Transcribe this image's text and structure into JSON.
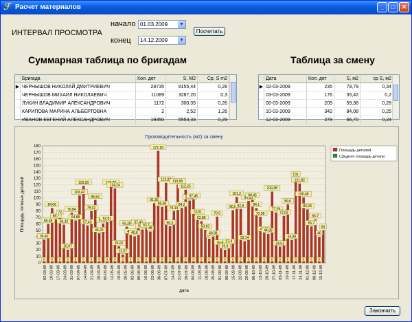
{
  "window": {
    "title": "Расчет материалов"
  },
  "filter": {
    "interval_label": "ИНТЕРВАЛ ПРОСМОТРА",
    "start_label": "начало",
    "end_label": "конец",
    "start_value": "01.03.2009",
    "end_value": "14.12.2009",
    "calc_button": "Посчитать"
  },
  "headings": {
    "summary": "Суммарная таблица по бригадам",
    "shift": "Таблица за смену"
  },
  "brigades": {
    "columns": [
      "Бригада",
      "Кол. дет",
      "S, M2",
      "Ср. S m2"
    ],
    "rows": [
      [
        "ЧЕРНЫШОВ НИКОЛАЙ ДМИТРИЕВИЧ",
        "28735",
        "8155,44",
        "0,28"
      ],
      [
        "ЧЕРНЫШОВ МИХАИЛ НИКОЛАЕВИЧ",
        "11089",
        "3287,20",
        "0,3"
      ],
      [
        "ЛУКИН ВЛАДИМИР АЛЕКСАНДРОВИЧ",
        "1172",
        "300,35",
        "0,26"
      ],
      [
        "КАРИПОВА МАРИНА АЛЬБЕРТОВНА",
        "2",
        "2,52",
        "1,26"
      ],
      [
        "ИВАНОВ ЕВГЕНИЙ АЛЕКСАНДРОВИЧ",
        "19350",
        "5553,33",
        "0,29"
      ]
    ]
  },
  "shifts": {
    "columns": [
      "Дата",
      "Кол. дет",
      "S, м2",
      "ср S, м2"
    ],
    "rows": [
      [
        "02-03-2009",
        "235",
        "79,79",
        "0,34"
      ],
      [
        "03-03-2009",
        "176",
        "35,42",
        "0,2"
      ],
      [
        "06-03-2009",
        "209",
        "59,38",
        "0,28"
      ],
      [
        "10-03-2009",
        "342",
        "84,08",
        "0,25"
      ],
      [
        "12-03-2009",
        "278",
        "66,70",
        "0,24"
      ]
    ]
  },
  "chart_data": {
    "type": "bar",
    "title": "Производительность (м2) за смену",
    "xlabel": "дата",
    "ylabel": "Площадь готовых деталей",
    "ylim": [
      0,
      180
    ],
    "yticks": [
      0,
      10,
      20,
      30,
      40,
      50,
      60,
      70,
      80,
      90,
      100,
      110,
      120,
      130,
      140,
      150,
      160,
      170,
      180
    ],
    "grid": true,
    "legend_position": "top-right",
    "series": [
      {
        "name": "Площадь деталей",
        "color": "#b5341e"
      },
      {
        "name": "Средняя площадь детали",
        "color": "#2e8b2e"
      }
    ],
    "categories": [
      "03-03-09",
      "10-03-09",
      "17-03-09",
      "24-03-09",
      "31-03-09",
      "07-04-09",
      "14-04-09",
      "21-04-09",
      "28-04-09",
      "05-05-09",
      "12-05-09",
      "19-05-09",
      "26-05-09",
      "02-06-09",
      "09-06-09",
      "16-06-09",
      "23-06-09",
      "30-06-09",
      "07-07-09",
      "14-07-09",
      "21-07-09",
      "28-07-09",
      "04-08-09",
      "11-08-09",
      "18-08-09",
      "25-08-09",
      "01-09-09",
      "08-09-09",
      "15-09-09",
      "22-09-09",
      "29-09-09",
      "06-10-09",
      "13-10-09",
      "20-10-09",
      "27-10-09",
      "03-11-09",
      "10-11-09",
      "17-11-09",
      "24-11-09",
      "01-12-09",
      "08-12-09",
      "15-12-09"
    ],
    "labeled_values": [
      35.42,
      59.38,
      84.06,
      66.7,
      72.0,
      58.32,
      20.07,
      76.84,
      64.88,
      103.42,
      118.28,
      57.43,
      79.42,
      96.52,
      45.25,
      60.28,
      62.81,
      118.28,
      114.24,
      25.02,
      12.57,
      55.28,
      42.9,
      40.6,
      57.43,
      51.14,
      52.7,
      48.0,
      91.56,
      172.18,
      85.68,
      122.82,
      56.3,
      79.14,
      119.95,
      84.2,
      112.25,
      95.52,
      97.45,
      73.01,
      63.88,
      50.63,
      37.0,
      40.38,
      70.9,
      25.61,
      19.9,
      27.4,
      80.8,
      101.2,
      82.8,
      33.14,
      94.95,
      98.45,
      84.1,
      70.58,
      46.56,
      44.38,
      109.38,
      77.29,
      24.51,
      72.02,
      89.6,
      34.99,
      131.0,
      121.82,
      100.46,
      82.03,
      55.7,
      66.7,
      40.0,
      50.0
    ],
    "avg_label": "0"
  },
  "close_button": "Закончить"
}
